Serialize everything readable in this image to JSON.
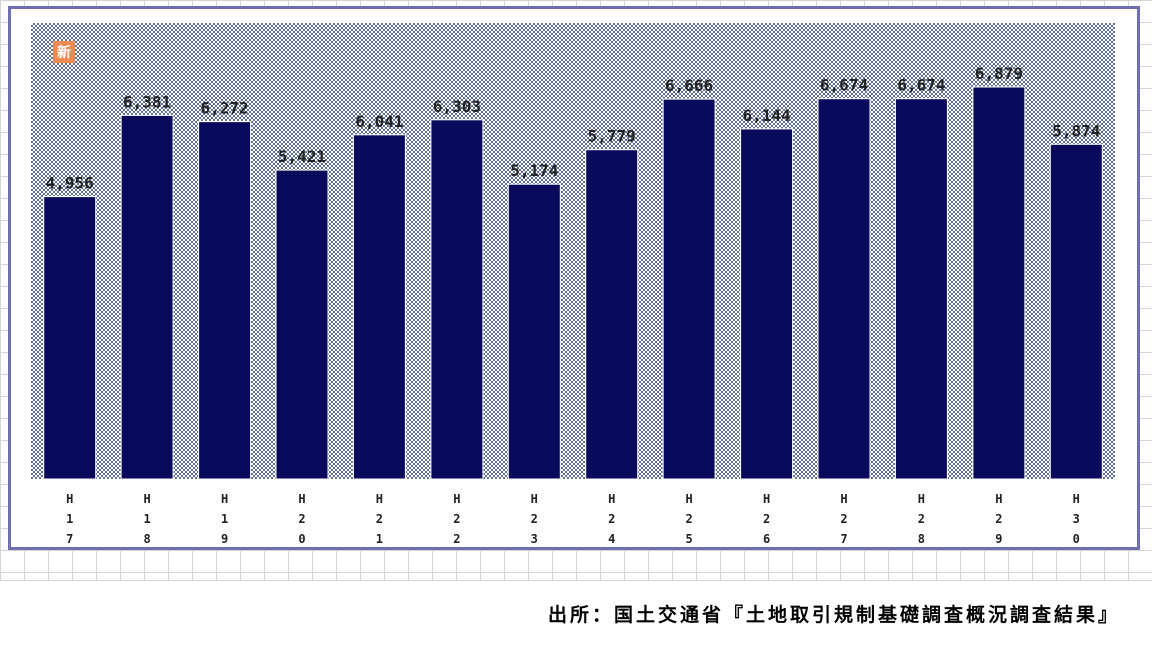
{
  "badge": {
    "text": "新",
    "color": "#ee8a52"
  },
  "source": "出所：国土交通省『土地取引規制基礎調査概況調査結果』",
  "colors": {
    "bar": "#0a0a5c",
    "frame": "#6f6fb0",
    "dots": "#5e6f8f"
  },
  "chart_data": {
    "type": "bar",
    "categories": [
      "H17",
      "H18",
      "H19",
      "H20",
      "H21",
      "H22",
      "H23",
      "H24",
      "H25",
      "H26",
      "H27",
      "H28",
      "H29",
      "H30"
    ],
    "category_glyphs": [
      [
        "H",
        "1",
        "7"
      ],
      [
        "H",
        "1",
        "8"
      ],
      [
        "H",
        "1",
        "9"
      ],
      [
        "H",
        "2",
        "0"
      ],
      [
        "H",
        "2",
        "1"
      ],
      [
        "H",
        "2",
        "2"
      ],
      [
        "H",
        "2",
        "3"
      ],
      [
        "H",
        "2",
        "4"
      ],
      [
        "H",
        "2",
        "5"
      ],
      [
        "H",
        "2",
        "6"
      ],
      [
        "H",
        "2",
        "7"
      ],
      [
        "H",
        "2",
        "8"
      ],
      [
        "H",
        "2",
        "9"
      ],
      [
        "H",
        "3",
        "0"
      ]
    ],
    "values": [
      4956,
      6381,
      6272,
      5421,
      6041,
      6303,
      5174,
      5779,
      6666,
      6144,
      6674,
      6674,
      6879,
      5874
    ],
    "value_labels": [
      "4,956",
      "6,381",
      "6,272",
      "5,421",
      "6,041",
      "6,303",
      "5,174",
      "5,779",
      "6,666",
      "6,144",
      "6,674",
      "6,674",
      "6,879",
      "5,874"
    ],
    "ylim": [
      0,
      6879
    ],
    "grid": false
  }
}
